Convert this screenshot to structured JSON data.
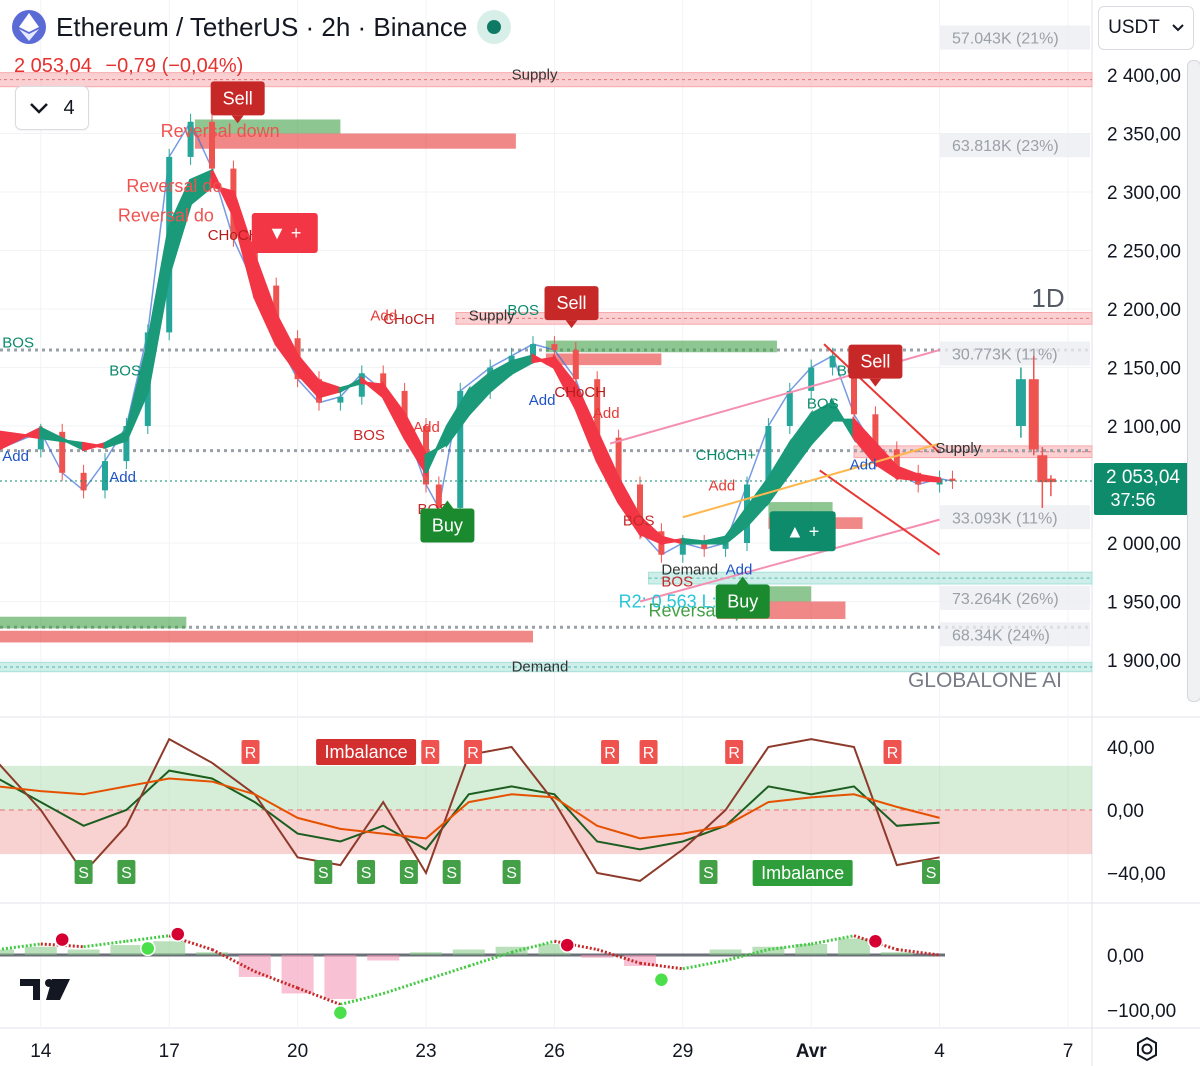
{
  "header": {
    "title": "Ethereum / TetherUS · 2h · Binance",
    "price": "2 053,04",
    "change": "−0,79 (−0,04%)",
    "indicator_count": "4",
    "currency": "USDT",
    "watermark": "GLOBALONE AI",
    "timeframe_label": "1D"
  },
  "colors": {
    "bull": "#26a69a",
    "bear": "#ef5350",
    "ribbon_bull": "#1b9a7a",
    "ribbon_bear": "#f23645",
    "supply": "#f7a9ad",
    "demand": "#a6e0d8",
    "current_price_badge": "#0e8b6b"
  },
  "chart_data": [
    {
      "type": "line",
      "title": "Ethereum / TetherUS · 2h · Binance",
      "x_ticks": [
        "14",
        "17",
        "20",
        "23",
        "26",
        "29",
        "Avr",
        "4",
        "7"
      ],
      "y_ticks": [
        "2 400,00",
        "2 350,00",
        "2 300,00",
        "2 250,00",
        "2 200,00",
        "2 150,00",
        "2 100,00",
        "2 050,00",
        "2 000,00",
        "1 950,00",
        "1 900,00"
      ],
      "ylim": [
        1880,
        2430
      ],
      "current_price_label": "2 053,04",
      "countdown": "37:56",
      "series": [
        {
          "x": [
            13.0,
            14.0,
            14.5,
            15.0,
            15.5,
            16.0,
            16.5,
            17.0,
            17.5,
            18.0,
            18.5,
            19.0,
            19.5,
            20.0,
            20.5,
            21.0,
            21.5,
            22.0,
            22.5,
            23.0,
            23.3,
            23.8,
            24.5,
            25.0,
            25.5,
            26.0,
            26.5,
            27.0,
            27.5,
            28.0,
            28.5,
            29.0,
            29.5,
            30.0,
            30.5,
            31.0,
            31.5,
            32.0,
            32.5,
            33.0,
            33.5,
            34.0,
            34.5,
            35.0,
            35.3
          ],
          "values": [
            2080,
            2095,
            2060,
            2045,
            2070,
            2100,
            2180,
            2330,
            2360,
            2320,
            2260,
            2220,
            2175,
            2140,
            2120,
            2125,
            2145,
            2130,
            2100,
            2050,
            2030,
            2130,
            2150,
            2160,
            2170,
            2165,
            2140,
            2090,
            2050,
            2010,
            1990,
            2000,
            1995,
            2000,
            2050,
            2100,
            2130,
            2150,
            2160,
            2110,
            2080,
            2060,
            2050,
            2055,
            2053
          ]
        }
      ],
      "ribbon": [
        {
          "x": 13.0,
          "fast": 2080,
          "slow": 2095
        },
        {
          "x": 14.0,
          "fast": 2098,
          "slow": 2090
        },
        {
          "x": 15.0,
          "fast": 2080,
          "slow": 2085
        },
        {
          "x": 15.5,
          "fast": 2085,
          "slow": 2082
        },
        {
          "x": 16.0,
          "fast": 2095,
          "slow": 2088
        },
        {
          "x": 16.5,
          "fast": 2170,
          "slow": 2130
        },
        {
          "x": 17.0,
          "fast": 2270,
          "slow": 2230
        },
        {
          "x": 17.5,
          "fast": 2310,
          "slow": 2290
        },
        {
          "x": 18.0,
          "fast": 2318,
          "slow": 2305
        },
        {
          "x": 18.5,
          "fast": 2280,
          "slow": 2300
        },
        {
          "x": 19.0,
          "fast": 2210,
          "slow": 2245
        },
        {
          "x": 19.5,
          "fast": 2170,
          "slow": 2195
        },
        {
          "x": 20.0,
          "fast": 2145,
          "slow": 2160
        },
        {
          "x": 20.5,
          "fast": 2125,
          "slow": 2138
        },
        {
          "x": 21.0,
          "fast": 2130,
          "slow": 2132
        },
        {
          "x": 21.5,
          "fast": 2140,
          "slow": 2137
        },
        {
          "x": 22.0,
          "fast": 2125,
          "slow": 2135
        },
        {
          "x": 22.5,
          "fast": 2090,
          "slow": 2110
        },
        {
          "x": 23.0,
          "fast": 2060,
          "slow": 2075
        },
        {
          "x": 23.5,
          "fast": 2100,
          "slow": 2085
        },
        {
          "x": 24.0,
          "fast": 2130,
          "slow": 2110
        },
        {
          "x": 24.5,
          "fast": 2145,
          "slow": 2130
        },
        {
          "x": 25.0,
          "fast": 2155,
          "slow": 2145
        },
        {
          "x": 25.5,
          "fast": 2160,
          "slow": 2155
        },
        {
          "x": 26.0,
          "fast": 2150,
          "slow": 2158
        },
        {
          "x": 26.5,
          "fast": 2115,
          "slow": 2135
        },
        {
          "x": 27.0,
          "fast": 2070,
          "slow": 2095
        },
        {
          "x": 27.5,
          "fast": 2035,
          "slow": 2055
        },
        {
          "x": 28.0,
          "fast": 2008,
          "slow": 2022
        },
        {
          "x": 28.5,
          "fast": 2000,
          "slow": 2005
        },
        {
          "x": 29.0,
          "fast": 2003,
          "slow": 2000
        },
        {
          "x": 29.5,
          "fast": 2001,
          "slow": 2000
        },
        {
          "x": 30.0,
          "fast": 2005,
          "slow": 2000
        },
        {
          "x": 30.5,
          "fast": 2030,
          "slow": 2015
        },
        {
          "x": 31.0,
          "fast": 2055,
          "slow": 2035
        },
        {
          "x": 31.5,
          "fast": 2085,
          "slow": 2060
        },
        {
          "x": 32.0,
          "fast": 2110,
          "slow": 2085
        },
        {
          "x": 32.5,
          "fast": 2120,
          "slow": 2105
        },
        {
          "x": 33.0,
          "fast": 2090,
          "slow": 2105
        },
        {
          "x": 33.5,
          "fast": 2068,
          "slow": 2085
        },
        {
          "x": 34.0,
          "fast": 2056,
          "slow": 2065
        },
        {
          "x": 34.5,
          "fast": 2054,
          "slow": 2058
        },
        {
          "x": 35.0,
          "fast": 2053,
          "slow": 2055
        }
      ],
      "daily_candles": [
        {
          "x": 36.9,
          "open": 2100,
          "close": 2140,
          "high": 2150,
          "low": 2090,
          "dir": "up"
        },
        {
          "x": 37.2,
          "open": 2140,
          "close": 2080,
          "high": 2160,
          "low": 2075,
          "dir": "down"
        },
        {
          "x": 37.4,
          "open": 2075,
          "close": 2052,
          "high": 2082,
          "low": 2030,
          "dir": "down"
        },
        {
          "x": 37.6,
          "open": 2055,
          "close": 2052,
          "high": 2058,
          "low": 2040,
          "dir": "down"
        }
      ],
      "zones": [
        {
          "type": "supply",
          "from_x": 13.0,
          "to_x": 38.0,
          "low": 2390,
          "high": 2402,
          "label": "Supply"
        },
        {
          "type": "supply",
          "from_x": 23.7,
          "to_x": 38.0,
          "low": 2187,
          "high": 2197,
          "label": "Supply"
        },
        {
          "type": "supply",
          "from_x": 33.0,
          "to_x": 38.0,
          "low": 2073,
          "high": 2083,
          "label": "Supply"
        },
        {
          "type": "demand",
          "from_x": 28.2,
          "to_x": 38.0,
          "low": 1965,
          "high": 1975,
          "label": "Demand"
        },
        {
          "type": "demand",
          "from_x": 13.0,
          "to_x": 38.0,
          "low": 1890,
          "high": 1898,
          "label": "Demand"
        }
      ],
      "volume_profile": [
        {
          "label": "57.043K (21%)",
          "price": 2432
        },
        {
          "label": "63.818K (23%)",
          "price": 2340
        },
        {
          "label": "30.773K (11%)",
          "price": 2162
        },
        {
          "label": "33.093K (11%)",
          "price": 2022
        },
        {
          "label": "73.264K (26%)",
          "price": 1953
        },
        {
          "label": "68.34K (24%)",
          "price": 1922
        }
      ],
      "signals": [
        {
          "text": "Sell",
          "x": 18.6,
          "price": 2380,
          "kind": "sell"
        },
        {
          "text": "Sell",
          "x": 26.4,
          "price": 2205,
          "kind": "sell"
        },
        {
          "text": "Sell",
          "x": 33.5,
          "price": 2155,
          "kind": "sell"
        },
        {
          "text": "Buy",
          "x": 23.5,
          "price": 2015,
          "kind": "buy"
        },
        {
          "text": "Buy",
          "x": 30.4,
          "price": 1950,
          "kind": "buy"
        },
        {
          "text": "▼ +",
          "x": 19.7,
          "price": 2265,
          "kind": "sell-plus"
        },
        {
          "text": "▲ +",
          "x": 31.8,
          "price": 2010,
          "kind": "buy-plus"
        }
      ],
      "annotations": [
        {
          "text": "Reversal down",
          "x": 16.8,
          "price": 2347,
          "color": "#ef5350"
        },
        {
          "text": "Reversal do",
          "x": 16.0,
          "price": 2300,
          "color": "#ef5350"
        },
        {
          "text": "Reversal do",
          "x": 15.8,
          "price": 2275,
          "color": "#ef5350"
        },
        {
          "text": "CHoCH+",
          "x": 17.9,
          "price": 2259,
          "color": "#b71c1c"
        },
        {
          "text": "BOS",
          "x": 15.6,
          "price": 2143,
          "color": "#0b8a6b"
        },
        {
          "text": "BOS",
          "x": 13.1,
          "price": 2167,
          "color": "#0b8a6b"
        },
        {
          "text": "BOS",
          "x": 21.3,
          "price": 2088,
          "color": "#c62828"
        },
        {
          "text": "BOS",
          "x": 22.8,
          "price": 2025,
          "color": "#c62828"
        },
        {
          "text": "BOS",
          "x": 24.9,
          "price": 2195,
          "color": "#0b8a6b"
        },
        {
          "text": "BOS",
          "x": 27.6,
          "price": 2015,
          "color": "#c62828"
        },
        {
          "text": "BOS",
          "x": 28.5,
          "price": 1963,
          "color": "#c62828"
        },
        {
          "text": "BOS",
          "x": 31.9,
          "price": 2115,
          "color": "#0b8a6b"
        },
        {
          "text": "BOS",
          "x": 32.6,
          "price": 2143,
          "color": "#0b8a6b"
        },
        {
          "text": "CHoCH",
          "x": 22.0,
          "price": 2187,
          "color": "#b71c1c"
        },
        {
          "text": "CHoCH",
          "x": 26.0,
          "price": 2125,
          "color": "#b71c1c"
        },
        {
          "text": "CHoCH+",
          "x": 29.3,
          "price": 2071,
          "color": "#0b8a6b"
        },
        {
          "text": "Supply",
          "x": 24.0,
          "price": 2190,
          "color": "#333333"
        },
        {
          "text": "Supply",
          "x": 34.9,
          "price": 2077,
          "color": "#333333"
        },
        {
          "text": "Demand",
          "x": 28.5,
          "price": 1973,
          "color": "#333333"
        },
        {
          "text": "Demand",
          "x": 25.0,
          "price": 1890,
          "color": "#333333"
        },
        {
          "text": "Supply",
          "x": 25.0,
          "price": 2396,
          "color": "#333333"
        },
        {
          "text": "Add",
          "x": 21.7,
          "price": 2190,
          "color": "#e53935"
        },
        {
          "text": "Add",
          "x": 22.7,
          "price": 2095,
          "color": "#e53935"
        },
        {
          "text": "Add",
          "x": 26.9,
          "price": 2107,
          "color": "#e53935"
        },
        {
          "text": "Add",
          "x": 29.6,
          "price": 2045,
          "color": "#e53935"
        },
        {
          "text": "Add",
          "x": 15.6,
          "price": 2052,
          "color": "#1e53c5"
        },
        {
          "text": "Add",
          "x": 13.1,
          "price": 2070,
          "color": "#1e53c5"
        },
        {
          "text": "Add",
          "x": 25.4,
          "price": 2118,
          "color": "#1e53c5"
        },
        {
          "text": "Add",
          "x": 32.9,
          "price": 2063,
          "color": "#1e53c5"
        },
        {
          "text": "Add",
          "x": 30.0,
          "price": 1973,
          "color": "#1e53c5"
        },
        {
          "text": "Reversal up",
          "x": 28.2,
          "price": 1937,
          "color": "#43a047"
        },
        {
          "text": "R2: 0.563 L: 100",
          "x": 27.5,
          "price": 1945,
          "color": "#26c6da"
        }
      ]
    },
    {
      "type": "line",
      "title": "",
      "y_ticks": [
        "40,00",
        "0,00",
        "−40,00"
      ],
      "ylim": [
        -65,
        65
      ],
      "labels": [
        {
          "text": "R",
          "x": 18.9,
          "kind": "r"
        },
        {
          "text": "Imbalance",
          "x": 21.6,
          "kind": "imb-red"
        },
        {
          "text": "R",
          "x": 23.1,
          "kind": "r"
        },
        {
          "text": "R",
          "x": 24.1,
          "kind": "r"
        },
        {
          "text": "R",
          "x": 27.3,
          "kind": "r"
        },
        {
          "text": "R",
          "x": 28.2,
          "kind": "r"
        },
        {
          "text": "R",
          "x": 30.2,
          "kind": "r"
        },
        {
          "text": "R",
          "x": 33.9,
          "kind": "r"
        },
        {
          "text": "S",
          "x": 15.0,
          "kind": "s"
        },
        {
          "text": "S",
          "x": 16.0,
          "kind": "s"
        },
        {
          "text": "S",
          "x": 20.6,
          "kind": "s"
        },
        {
          "text": "S",
          "x": 21.6,
          "kind": "s"
        },
        {
          "text": "S",
          "x": 22.6,
          "kind": "s"
        },
        {
          "text": "S",
          "x": 23.6,
          "kind": "s"
        },
        {
          "text": "S",
          "x": 25.0,
          "kind": "s"
        },
        {
          "text": "S",
          "x": 29.6,
          "kind": "s"
        },
        {
          "text": "Imbalance",
          "x": 31.8,
          "kind": "imb-green"
        },
        {
          "text": "S",
          "x": 34.8,
          "kind": "s"
        }
      ],
      "series": [
        {
          "x": [
            13,
            14,
            15,
            16,
            17,
            18,
            19,
            20,
            21,
            22,
            23,
            24,
            25,
            26,
            27,
            28,
            29,
            30,
            31,
            32,
            33,
            34,
            35
          ],
          "values": [
            20,
            5,
            -10,
            0,
            25,
            20,
            5,
            -15,
            -20,
            -10,
            -25,
            10,
            15,
            10,
            -20,
            -25,
            -20,
            -10,
            15,
            10,
            15,
            -10,
            -8
          ]
        },
        {
          "x": [
            13,
            14,
            15,
            16,
            17,
            18,
            19,
            20,
            21,
            22,
            23,
            24,
            25,
            26,
            27,
            28,
            29,
            30,
            31,
            32,
            33,
            34,
            35
          ],
          "values": [
            30,
            0,
            -40,
            -10,
            45,
            30,
            10,
            -30,
            -35,
            5,
            -40,
            35,
            40,
            5,
            -40,
            -45,
            -25,
            0,
            40,
            45,
            40,
            -35,
            -30
          ]
        },
        {
          "x": [
            13,
            14,
            15,
            16,
            17,
            18,
            19,
            20,
            21,
            22,
            23,
            24,
            25,
            26,
            27,
            28,
            29,
            30,
            31,
            32,
            33,
            34,
            35
          ],
          "values": [
            15,
            12,
            10,
            15,
            20,
            18,
            10,
            -5,
            -12,
            -15,
            -18,
            5,
            10,
            8,
            -10,
            -18,
            -15,
            -10,
            5,
            8,
            10,
            2,
            -5
          ]
        }
      ]
    },
    {
      "type": "bar",
      "title": "",
      "y_ticks": [
        "0,00",
        "−100,00"
      ],
      "ylim": [
        -130,
        40
      ],
      "values_x": [
        13,
        14,
        15,
        16,
        17,
        18,
        19,
        20,
        21,
        22,
        23,
        24,
        25,
        26,
        27,
        28,
        29,
        30,
        31,
        32,
        33,
        34,
        35
      ],
      "values": [
        10,
        15,
        10,
        18,
        25,
        5,
        -40,
        -70,
        -80,
        -10,
        5,
        10,
        15,
        20,
        -5,
        -20,
        0,
        10,
        15,
        20,
        30,
        5,
        0
      ],
      "line": [
        10,
        20,
        15,
        25,
        35,
        10,
        -30,
        -60,
        -90,
        -70,
        -45,
        -20,
        5,
        25,
        10,
        -15,
        -25,
        -10,
        10,
        20,
        35,
        10,
        0
      ],
      "markers": [
        {
          "x": 14.5,
          "value": 28,
          "kind": "top"
        },
        {
          "x": 16.5,
          "value": 12,
          "kind": "bottom"
        },
        {
          "x": 17.2,
          "value": 38,
          "kind": "top"
        },
        {
          "x": 21.0,
          "value": -105,
          "kind": "bottom"
        },
        {
          "x": 26.3,
          "value": 18,
          "kind": "top"
        },
        {
          "x": 28.5,
          "value": -45,
          "kind": "bottom"
        },
        {
          "x": 33.5,
          "value": 25,
          "kind": "top"
        }
      ]
    }
  ]
}
